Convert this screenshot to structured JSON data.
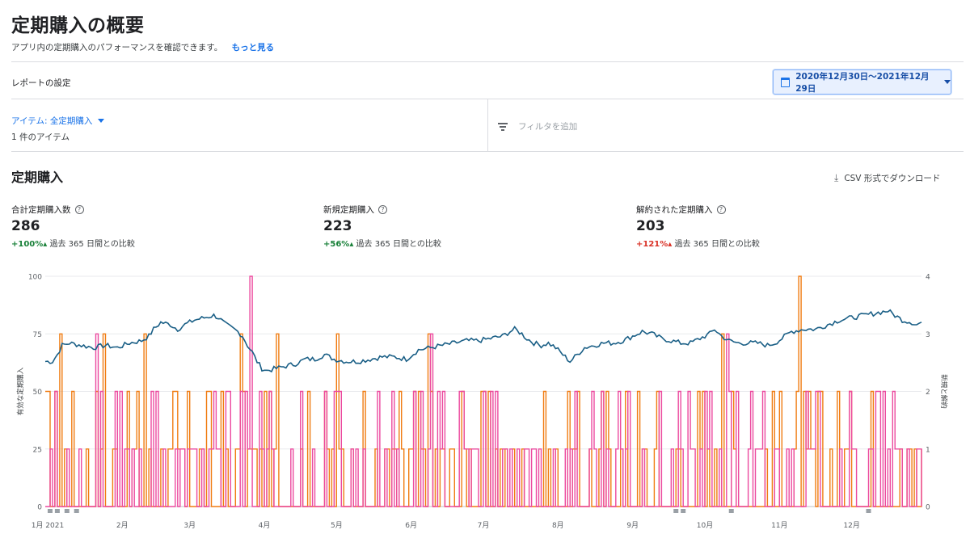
{
  "header": {
    "title": "定期購入の概要",
    "subtitle": "アプリ内の定期購入のパフォーマンスを確認できます。",
    "learn_more": "もっと見る"
  },
  "report": {
    "settings_label": "レポートの設定",
    "date_range": "2020年12月30日～2021年12月29日",
    "item_filter": "アイテム: 全定期購入",
    "item_count": "1 件のアイテム",
    "add_filter": "フィルタを追加"
  },
  "section": {
    "title": "定期購入",
    "csv_label": "CSV 形式でダウンロード"
  },
  "metrics": [
    {
      "label": "合計定期購入数",
      "value": "286",
      "pct": "+100%",
      "arrow": "▴",
      "compare": "過去 365 日間との比較",
      "trend_color": "#188038"
    },
    {
      "label": "新規定期購入",
      "value": "223",
      "pct": "+56%",
      "arrow": "▴",
      "compare": "過去 365 日間との比較",
      "trend_color": "#188038"
    },
    {
      "label": "解約された定期購入",
      "value": "203",
      "pct": "+121%",
      "arrow": "▴",
      "compare": "過去 365 日間との比較",
      "trend_color": "#d93025"
    }
  ],
  "colors": {
    "active_line": "#1a5f86",
    "new_line": "#f07c12",
    "canceled_line": "#ec4a9f",
    "accent": "#1a73e8"
  },
  "chart_data": {
    "type": "line",
    "ylabel": "有効な定期購入",
    "y2label": "新規と解約",
    "y_ticks": [
      "0",
      "25",
      "50",
      "75",
      "100"
    ],
    "y2_ticks": [
      "0",
      "1",
      "2",
      "3",
      "4"
    ],
    "ylim": [
      0,
      100
    ],
    "y2lim": [
      0,
      4
    ],
    "x_ticks": [
      "1月 2021",
      "2月",
      "3月",
      "4月",
      "5月",
      "6月",
      "7月",
      "8月",
      "9月",
      "10月",
      "11月",
      "12月"
    ],
    "x_tick_days": [
      1,
      32,
      60,
      91,
      121,
      152,
      182,
      213,
      244,
      274,
      305,
      335
    ],
    "days": 365,
    "series": [
      {
        "key": "active",
        "axis": "left",
        "keypoints": [
          [
            0,
            63
          ],
          [
            3,
            63
          ],
          [
            5,
            66
          ],
          [
            7,
            70
          ],
          [
            10,
            71
          ],
          [
            15,
            70
          ],
          [
            20,
            69
          ],
          [
            25,
            70
          ],
          [
            30,
            69
          ],
          [
            35,
            71
          ],
          [
            40,
            72
          ],
          [
            43,
            74
          ],
          [
            45,
            77
          ],
          [
            48,
            80
          ],
          [
            52,
            79
          ],
          [
            55,
            77
          ],
          [
            58,
            79
          ],
          [
            62,
            81
          ],
          [
            66,
            82
          ],
          [
            70,
            83
          ],
          [
            72,
            82
          ],
          [
            75,
            79
          ],
          [
            80,
            76
          ],
          [
            82,
            74
          ],
          [
            84,
            70
          ],
          [
            86,
            67
          ],
          [
            88,
            63
          ],
          [
            90,
            60
          ],
          [
            92,
            59
          ],
          [
            96,
            60
          ],
          [
            100,
            61
          ],
          [
            104,
            62
          ],
          [
            108,
            64
          ],
          [
            112,
            64
          ],
          [
            116,
            66
          ],
          [
            120,
            64
          ],
          [
            125,
            63
          ],
          [
            130,
            63
          ],
          [
            135,
            64
          ],
          [
            140,
            65
          ],
          [
            145,
            65
          ],
          [
            150,
            64
          ],
          [
            155,
            68
          ],
          [
            160,
            69
          ],
          [
            165,
            70
          ],
          [
            170,
            71
          ],
          [
            175,
            72
          ],
          [
            180,
            72
          ],
          [
            185,
            73
          ],
          [
            190,
            74
          ],
          [
            193,
            76
          ],
          [
            195,
            77
          ],
          [
            198,
            75
          ],
          [
            200,
            73
          ],
          [
            203,
            71
          ],
          [
            206,
            70
          ],
          [
            209,
            71
          ],
          [
            212,
            69
          ],
          [
            215,
            66
          ],
          [
            218,
            63
          ],
          [
            221,
            66
          ],
          [
            224,
            69
          ],
          [
            228,
            70
          ],
          [
            232,
            71
          ],
          [
            236,
            71
          ],
          [
            240,
            72
          ],
          [
            244,
            74
          ],
          [
            248,
            76
          ],
          [
            252,
            75
          ],
          [
            256,
            73
          ],
          [
            260,
            72
          ],
          [
            264,
            71
          ],
          [
            268,
            71
          ],
          [
            272,
            73
          ],
          [
            276,
            75
          ],
          [
            278,
            77
          ],
          [
            281,
            74
          ],
          [
            284,
            72
          ],
          [
            288,
            71
          ],
          [
            292,
            71
          ],
          [
            296,
            71
          ],
          [
            300,
            70
          ],
          [
            303,
            71
          ],
          [
            306,
            73
          ],
          [
            310,
            76
          ],
          [
            315,
            77
          ],
          [
            320,
            77
          ],
          [
            325,
            79
          ],
          [
            330,
            81
          ],
          [
            335,
            82
          ],
          [
            340,
            83
          ],
          [
            345,
            84
          ],
          [
            350,
            85
          ],
          [
            353,
            83
          ],
          [
            356,
            81
          ],
          [
            360,
            80
          ],
          [
            362,
            79
          ],
          [
            364,
            80
          ]
        ]
      },
      {
        "key": "new",
        "axis": "right"
      },
      {
        "key": "canceled",
        "axis": "right"
      }
    ]
  }
}
